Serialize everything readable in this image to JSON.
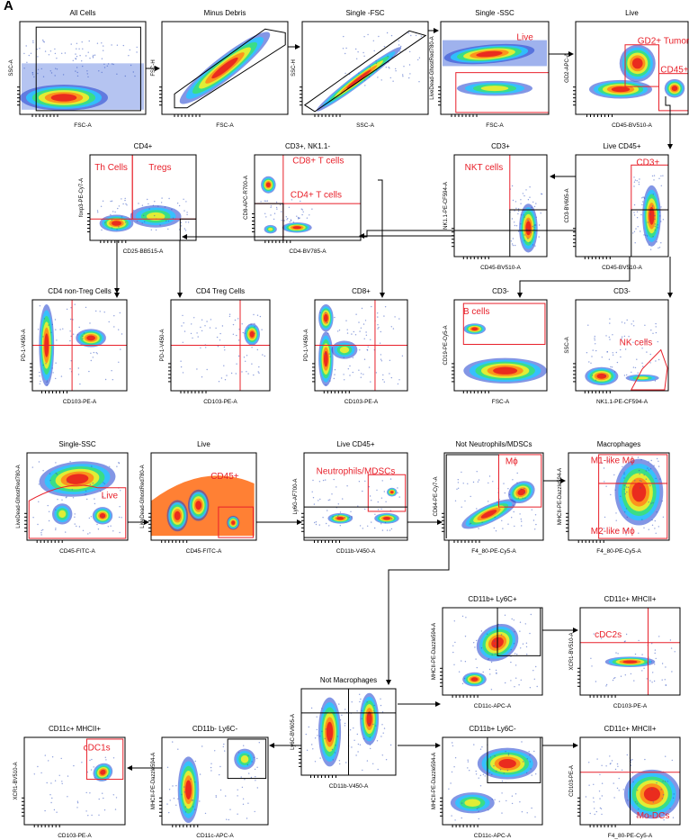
{
  "figure_letter": "A",
  "panels": [
    {
      "id": "all-cells",
      "title": "All Cells",
      "xlabel": "FSC-A",
      "ylabel": "SSC-A",
      "kind": "scatter-bottom",
      "gates": [],
      "labels": []
    },
    {
      "id": "minus-debris",
      "title": "Minus Debris",
      "xlabel": "FSC-A",
      "ylabel": "FSC-H",
      "kind": "diagonal-thick",
      "gates": [],
      "labels": []
    },
    {
      "id": "single-fsc",
      "title": "Single -FSC",
      "xlabel": "SSC-A",
      "ylabel": "SSC-H",
      "kind": "diagonal-thin",
      "gates": [],
      "labels": []
    },
    {
      "id": "single-ssc-1",
      "title": "Single -SSC",
      "xlabel": "FSC-A",
      "ylabel": "LiveDead-GhostRed780-A",
      "kind": "live-dead",
      "gates": [],
      "labels": [
        "Live"
      ]
    },
    {
      "id": "live-1",
      "title": "Live",
      "xlabel": "CD45-BV510-A",
      "ylabel": "GD2-APC-A",
      "kind": "gd2",
      "gates": [],
      "labels": [
        "GD2+ Tumor",
        "CD45+"
      ]
    },
    {
      "id": "cd4-plus",
      "title": "CD4+",
      "xlabel": "CD25-BB515-A",
      "ylabel": "foxp3-PE-Cy7-A",
      "kind": "cd4",
      "gates": [],
      "labels": [
        "Th Cells",
        "Tregs"
      ]
    },
    {
      "id": "cd3-nk11-neg",
      "title": "CD3+, NK1.1-",
      "xlabel": "CD4-BV785-A",
      "ylabel": "CD8-APC-R700-A",
      "kind": "cd4cd8",
      "gates": [],
      "labels": [
        "CD8+ T cells",
        "CD4+ T cells"
      ]
    },
    {
      "id": "cd3-plus",
      "title": "CD3+",
      "xlabel": "CD45-BV510-A",
      "ylabel": "NK1.1-PE-CF594-A",
      "kind": "nkt",
      "gates": [],
      "labels": [
        "NKT cells"
      ]
    },
    {
      "id": "live-cd45",
      "title": "Live CD45+",
      "xlabel": "CD45-BV510-A",
      "ylabel": "CD3-BV605-A",
      "kind": "cd3",
      "gates": [],
      "labels": [
        "CD3+"
      ]
    },
    {
      "id": "cd4-non-treg",
      "title": "CD4 non-Treg Cells",
      "xlabel": "CD103-PE-A",
      "ylabel": "PD-1-V450-A",
      "kind": "quad-a",
      "gates": [],
      "labels": []
    },
    {
      "id": "cd4-treg",
      "title": "CD4 Treg Cells",
      "xlabel": "CD103-PE-A",
      "ylabel": "PD-1-V450-A",
      "kind": "quad-b",
      "gates": [],
      "labels": []
    },
    {
      "id": "cd8-plus",
      "title": "CD8+",
      "xlabel": "CD103-PE-A",
      "ylabel": "PD-1-V450-A",
      "kind": "quad-c",
      "gates": [],
      "labels": []
    },
    {
      "id": "cd3-neg-1",
      "title": "CD3-",
      "xlabel": "FSC-A",
      "ylabel": "CD19-PE-Cy5-A",
      "kind": "bcell",
      "gates": [],
      "labels": [
        "B cells"
      ]
    },
    {
      "id": "cd3-neg-2",
      "title": "CD3-",
      "xlabel": "NK1.1-PE-CF594-A",
      "ylabel": "SSC-A",
      "kind": "nk",
      "gates": [],
      "labels": [
        "NK cells"
      ]
    },
    {
      "id": "single-ssc-2",
      "title": "Single-SSC",
      "xlabel": "CD45-FITC-A",
      "ylabel": "LiveDead-GhostRed780-A",
      "kind": "live2",
      "gates": [],
      "labels": [
        "Live"
      ]
    },
    {
      "id": "live-2",
      "title": "Live",
      "xlabel": "CD45-FITC-A",
      "ylabel": "LiveDead-GhostRed780-A",
      "kind": "cd45",
      "gates": [],
      "labels": [
        "CD45+"
      ]
    },
    {
      "id": "live-cd45-2",
      "title": "Live CD45+",
      "xlabel": "CD11b-V450-A",
      "ylabel": "Ly6G-AF700-A",
      "kind": "neutro",
      "gates": [],
      "labels": [
        "Neutrophils/MDSCs"
      ]
    },
    {
      "id": "not-neutro",
      "title": "Not Neutrophils/MDSCs",
      "xlabel": "F4_80-PE-Cy5-A",
      "ylabel": "CD64-PE-Cy7-A",
      "kind": "mphi",
      "gates": [],
      "labels": [
        "Mϕ"
      ]
    },
    {
      "id": "macrophages",
      "title": "Macrophages",
      "xlabel": "F4_80-PE-Cy5-A",
      "ylabel": "MHCII-PE-Dazzle594-A",
      "kind": "macro",
      "gates": [],
      "labels": [
        "M1-like Mϕ",
        "M2-like Mϕ"
      ]
    },
    {
      "id": "cd11b-ly6c-pos",
      "title": "CD11b+ Ly6C+",
      "xlabel": "CD11c-APC-A",
      "ylabel": "MHCII-PE-Dazzle594-A",
      "kind": "dc-a",
      "gates": [],
      "labels": []
    },
    {
      "id": "cd11c-mhcii-1",
      "title": "CD11c+ MHCII+",
      "xlabel": "CD103-PE-A",
      "ylabel": "XCR1-BV510-A",
      "kind": "cdc2",
      "gates": [],
      "labels": [
        "cDC2s"
      ]
    },
    {
      "id": "not-macrophages",
      "title": "Not Macrophages",
      "xlabel": "CD11b-V450-A",
      "ylabel": "Ly6C-BV605-A",
      "kind": "notmac",
      "gates": [],
      "labels": []
    },
    {
      "id": "cd11c-mhcii-2",
      "title": "CD11c+ MHCII+",
      "xlabel": "CD103-PE-A",
      "ylabel": "XCR1-BV510-A",
      "kind": "cdc1",
      "gates": [],
      "labels": [
        "cDC1s"
      ]
    },
    {
      "id": "cd11b-neg-ly6c-neg",
      "title": "CD11b- Ly6C-",
      "xlabel": "CD11c-APC-A",
      "ylabel": "MHCII-PE-Dazzle594-A",
      "kind": "dc-b",
      "gates": [],
      "labels": []
    },
    {
      "id": "cd11b-pos-ly6c-neg",
      "title": "CD11b+ Ly6C-",
      "xlabel": "CD11c-APC-A",
      "ylabel": "MHCII-PE-Dazzle594-A",
      "kind": "dc-c",
      "gates": [],
      "labels": []
    },
    {
      "id": "cd11c-mhcii-3",
      "title": "CD11c+ MHCII+",
      "xlabel": "F4_80-PE-Cy5-A",
      "ylabel": "CD103-PE-A",
      "kind": "modc",
      "gates": [],
      "labels": [
        "Mo-DCs"
      ]
    }
  ],
  "colors": {
    "gate_red": "#e8202a",
    "gate_black": "#000000",
    "label_red": "#e8202a"
  }
}
